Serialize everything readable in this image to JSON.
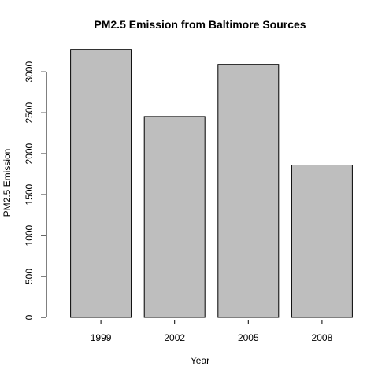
{
  "chart_data": {
    "type": "bar",
    "title": "PM2.5 Emission from Baltimore Sources",
    "xlabel": "Year",
    "ylabel": "PM2.5 Emission",
    "categories": [
      "1999",
      "2002",
      "2005",
      "2008"
    ],
    "values": [
      3274,
      2454,
      3091,
      1862
    ],
    "ylim": [
      0,
      3300
    ],
    "yticks": [
      0,
      500,
      1000,
      1500,
      2000,
      2500,
      3000
    ],
    "grid": false,
    "legend": "none",
    "colors": {
      "bar_fill": "#bebebe",
      "bar_stroke": "#000000",
      "axis": "#000000",
      "background": "#ffffff"
    }
  }
}
